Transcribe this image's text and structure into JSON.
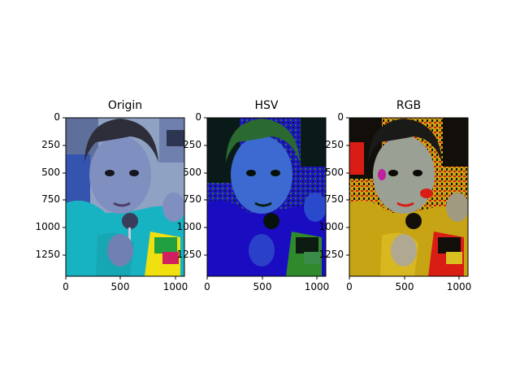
{
  "figure": {
    "panels": [
      {
        "title": "Origin",
        "yticks": [
          "0",
          "250",
          "500",
          "750",
          "1000",
          "1250"
        ],
        "xticks": [
          "0",
          "500",
          "1000"
        ]
      },
      {
        "title": "HSV",
        "yticks": [
          "0",
          "250",
          "500",
          "750",
          "1000",
          "1250"
        ],
        "xticks": [
          "0",
          "500",
          "1000"
        ]
      },
      {
        "title": "RGB",
        "yticks": [
          "0",
          "250",
          "500",
          "750",
          "1000",
          "1250"
        ],
        "xticks": [
          "0",
          "500",
          "1000"
        ]
      }
    ]
  },
  "colors": {
    "origin_bg": "#7f93b7",
    "origin_jacket": "#18b3c2",
    "origin_face": "#7f8fc0",
    "origin_hair": "#2d2e3a",
    "hsv_bg": "#1f16c8",
    "hsv_dark": "#0b1f10",
    "hsv_face": "#3c6ad0",
    "hsv_green": "#2e8a2b",
    "rgb_bg": "#bfa010",
    "rgb_red": "#d91c14",
    "rgb_face": "#9aa094",
    "rgb_dark": "#120f0a"
  }
}
